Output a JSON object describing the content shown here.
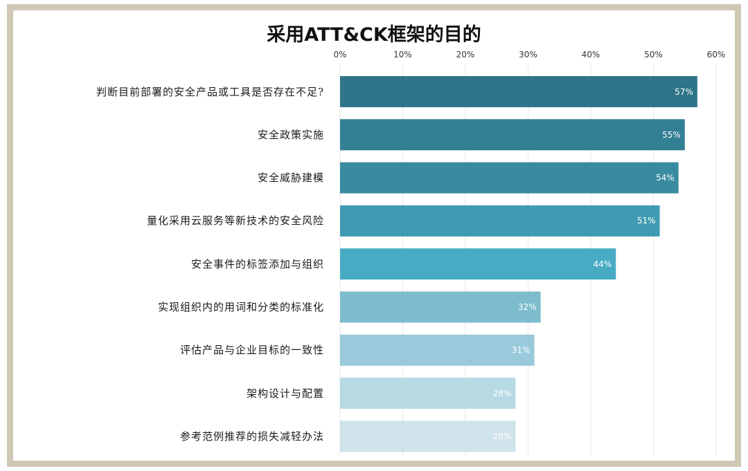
{
  "chart_data": {
    "type": "bar",
    "orientation": "horizontal",
    "title": "采用ATT&CK框架的目的",
    "categories": [
      "判断目前部署的安全产品或工具是否存在不足?",
      "安全政策实施",
      "安全威胁建模",
      "量化采用云服务等新技术的安全风险",
      "安全事件的标签添加与组织",
      "实现组织内的用词和分类的标准化",
      "评估产品与企业目标的一致性",
      "架构设计与配置",
      "参考范例推荐的损失减轻办法"
    ],
    "values": [
      57,
      55,
      54,
      51,
      44,
      32,
      31,
      28,
      28
    ],
    "value_labels": [
      "57%",
      "55%",
      "54%",
      "51%",
      "44%",
      "32%",
      "31%",
      "28%",
      "28%"
    ],
    "x_ticks": [
      "0%",
      "10%",
      "20%",
      "30%",
      "40%",
      "50%",
      "60%"
    ],
    "xlim": [
      0,
      60
    ],
    "xlabel": "",
    "ylabel": "",
    "grid": true,
    "legend": "none",
    "colors": [
      "#2e7589",
      "#337f94",
      "#398c9f",
      "#3f9bb1",
      "#48abc4",
      "#7dbccd",
      "#99cadb",
      "#b7d9e4",
      "#cfe3ea"
    ]
  }
}
